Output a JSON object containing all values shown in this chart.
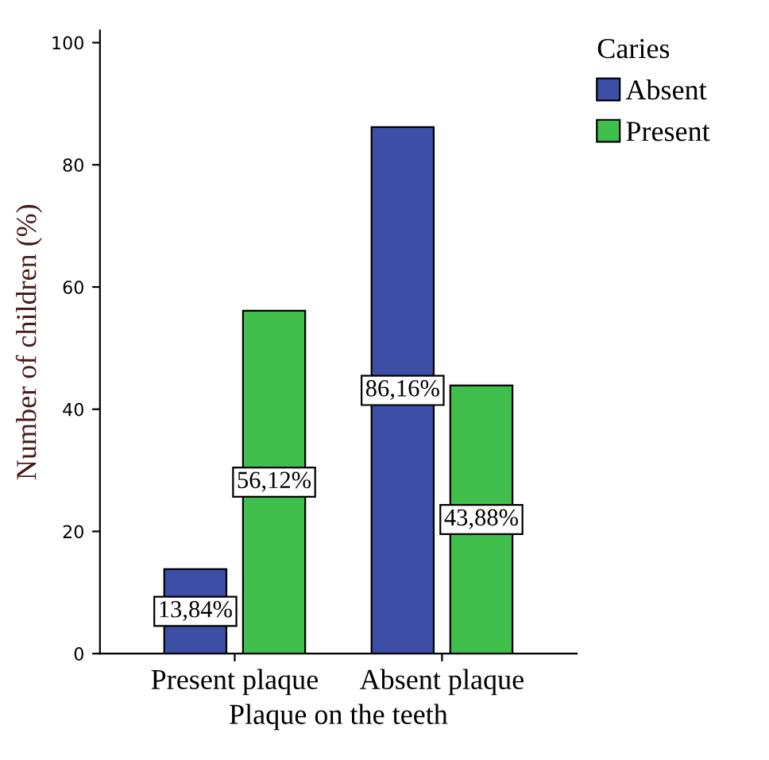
{
  "chart_data": {
    "type": "bar",
    "xlabel": "Plaque on the teeth",
    "ylabel": "Number of children (%)",
    "legend_title": "Caries",
    "categories": [
      "Present plaque",
      "Absent plaque"
    ],
    "series": [
      {
        "name": "Absent",
        "color": "#3c4ea6",
        "values": [
          13.84,
          86.16
        ],
        "value_labels": [
          "13,84%",
          "86,16%"
        ]
      },
      {
        "name": "Present",
        "color": "#40bf4c",
        "values": [
          56.12,
          43.88
        ],
        "value_labels": [
          "56,12%",
          "43,88%"
        ]
      }
    ],
    "ylim": [
      0,
      102
    ],
    "yticks": [
      0,
      20,
      40,
      60,
      80,
      100
    ],
    "grid": false,
    "legend": "top right"
  }
}
